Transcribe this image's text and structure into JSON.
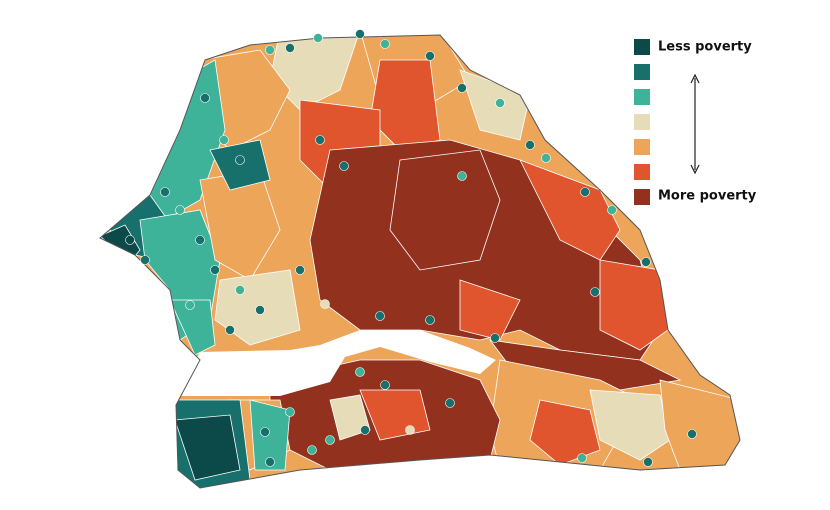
{
  "legend": {
    "low_label": "Less poverty",
    "high_label": "More poverty",
    "colors": [
      "#0b4a48",
      "#17706c",
      "#3fb39a",
      "#e6dcb8",
      "#eda55a",
      "#e0552e",
      "#93311f"
    ]
  }
}
